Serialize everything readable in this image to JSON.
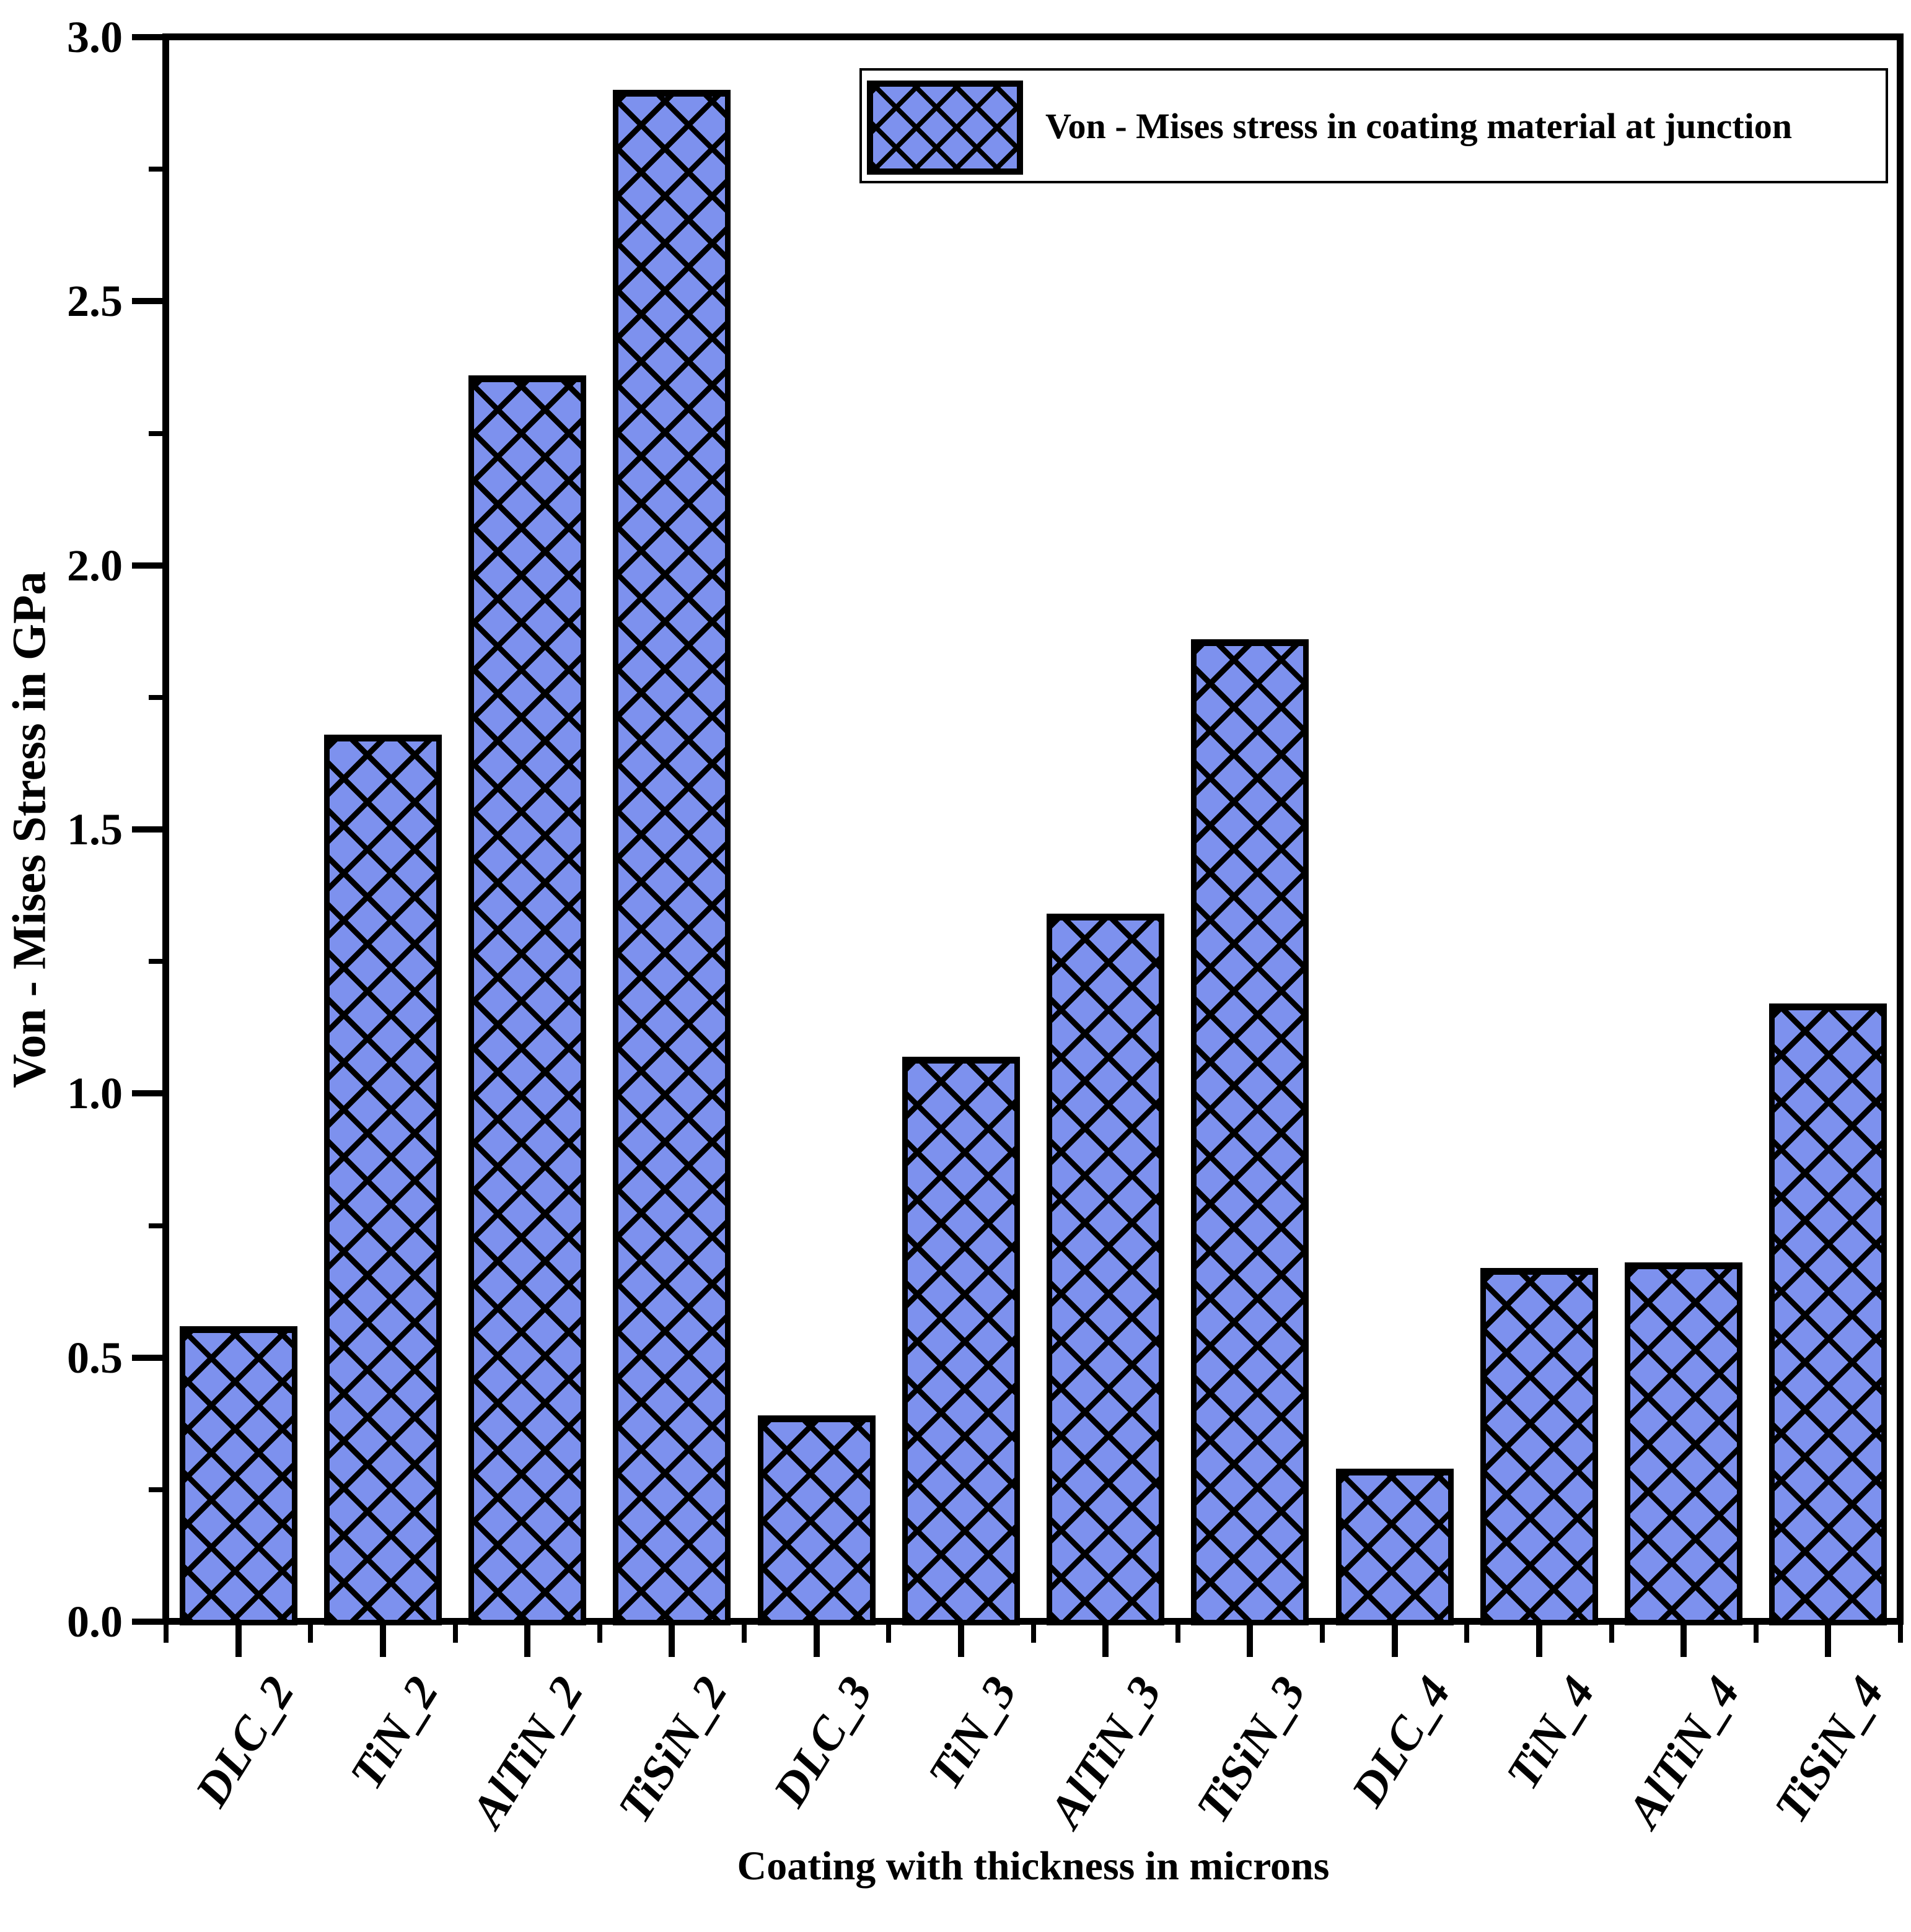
{
  "chart_data": {
    "type": "bar",
    "categories": [
      "DLC_2",
      "TiN_2",
      "AlTiN_2",
      "TiSiN_2",
      "DLC_3",
      "TiN_3",
      "AlTiN_3",
      "TiSiN_3",
      "DLC_4",
      "TiN_4",
      "AlTiN_4",
      "TiSiN_4"
    ],
    "values": [
      0.56,
      1.68,
      2.36,
      2.9,
      0.39,
      1.07,
      1.34,
      1.86,
      0.29,
      0.67,
      0.68,
      1.17
    ],
    "xlabel": "Coating with thickness in microns",
    "ylabel": "Von - Mises Stress in GPa",
    "ylim": [
      0.0,
      3.0
    ],
    "ytick_major_step": 0.5,
    "ytick_minor_step": 0.25,
    "ytick_labels": [
      "0.0",
      "0.5",
      "1.0",
      "1.5",
      "2.0",
      "2.5",
      "3.0"
    ],
    "legend": {
      "label": "Von - Mises stress in coating material at junction",
      "position": "upper right"
    },
    "bar_color": "#7d91ee",
    "hatch": "diagonal-crosshatch",
    "grid": false,
    "xtick_label_rotation_deg": 58
  }
}
